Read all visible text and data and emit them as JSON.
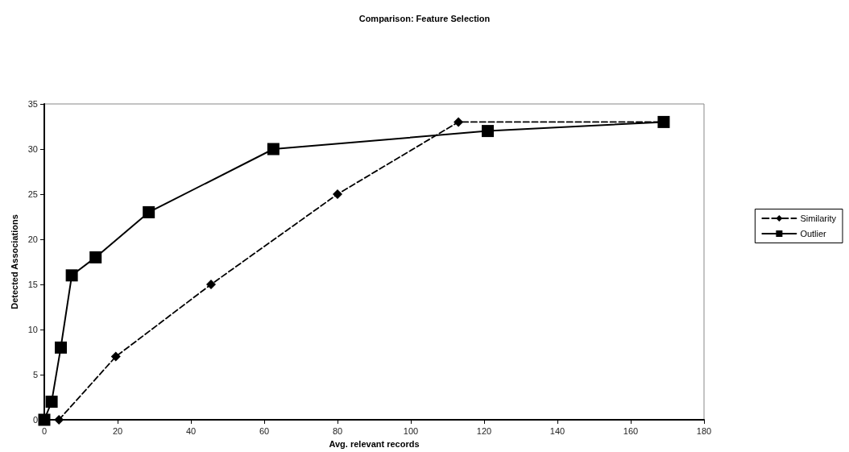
{
  "chart_data": {
    "type": "line",
    "title": "Comparison: Feature Selection",
    "xlabel": "Avg. relevant records",
    "ylabel": "Detected Associations",
    "xlim": [
      0,
      180
    ],
    "xticks": [
      0,
      20,
      40,
      60,
      80,
      100,
      120,
      140,
      160,
      180
    ],
    "ylim": [
      0,
      35
    ],
    "yticks": [
      0,
      5,
      10,
      15,
      20,
      25,
      30,
      35
    ],
    "grid": false,
    "legend": "right",
    "series": [
      {
        "name": "Similarity",
        "color": "#000000",
        "marker": "diamond",
        "line_style": "dashed",
        "x": [
          4,
          19.5,
          45.5,
          80,
          113,
          169
        ],
        "values": [
          0,
          7,
          15,
          25,
          33,
          33
        ]
      },
      {
        "name": "Outlier",
        "color": "#000000",
        "marker": "square",
        "line_style": "solid",
        "x": [
          0,
          2,
          4.5,
          7.5,
          14,
          28.5,
          62.5,
          121,
          169
        ],
        "values": [
          0,
          2,
          8,
          16,
          18,
          23,
          30,
          32,
          33
        ]
      }
    ]
  }
}
